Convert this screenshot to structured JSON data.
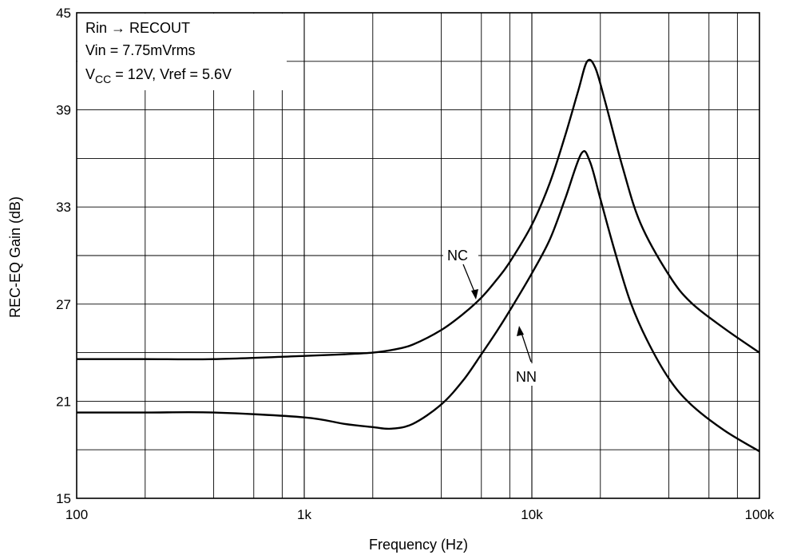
{
  "chart_data": {
    "type": "line",
    "title": "",
    "xlabel": "Frequency  (Hz)",
    "ylabel": "REC-EQ Gain  (dB)",
    "x_scale": "log",
    "xlim": [
      100,
      100000
    ],
    "ylim": [
      15,
      45
    ],
    "x_tick_values": [
      100,
      1000,
      10000,
      100000
    ],
    "x_tick_labels": [
      "100",
      "1k",
      "10k",
      "100k"
    ],
    "y_tick_values": [
      15,
      21,
      27,
      33,
      39,
      45
    ],
    "y_tick_labels": [
      "15",
      "21",
      "27",
      "33",
      "39",
      "45"
    ],
    "grid": true,
    "conditions": {
      "line1": "Rin → RECOUT",
      "line2": "Vin = 7.75mVrms",
      "line3_prefix": "V",
      "line3_sub": "CC",
      "line3_suffix": " = 12V, Vref = 5.6V"
    },
    "series": [
      {
        "name": "NC",
        "x": [
          100,
          200,
          400,
          1000,
          1500,
          2000,
          2500,
          3000,
          4000,
          5000,
          6000,
          7000,
          8000,
          10000,
          12000,
          14000,
          16000,
          17500,
          19000,
          21000,
          25000,
          30000,
          40000,
          50000,
          70000,
          100000
        ],
        "y": [
          23.6,
          23.6,
          23.6,
          23.8,
          23.9,
          24.0,
          24.2,
          24.5,
          25.4,
          26.4,
          27.4,
          28.5,
          29.6,
          31.9,
          34.5,
          37.4,
          40.2,
          42.0,
          41.6,
          39.5,
          35.5,
          32.0,
          28.8,
          27.1,
          25.5,
          24.0
        ]
      },
      {
        "name": "NN",
        "x": [
          100,
          200,
          400,
          1000,
          1500,
          2000,
          2400,
          3000,
          4000,
          5000,
          6000,
          7000,
          8000,
          10000,
          12000,
          14000,
          16500,
          18000,
          20000,
          23000,
          27000,
          32000,
          40000,
          50000,
          70000,
          100000
        ],
        "y": [
          20.3,
          20.3,
          20.3,
          20.0,
          19.6,
          19.4,
          19.3,
          19.6,
          20.8,
          22.3,
          23.9,
          25.3,
          26.6,
          28.9,
          31.0,
          33.5,
          36.3,
          35.8,
          33.5,
          30.4,
          27.2,
          24.8,
          22.4,
          20.8,
          19.2,
          17.9
        ]
      }
    ],
    "labels": {
      "nc": "NC",
      "nn": "NN"
    }
  }
}
